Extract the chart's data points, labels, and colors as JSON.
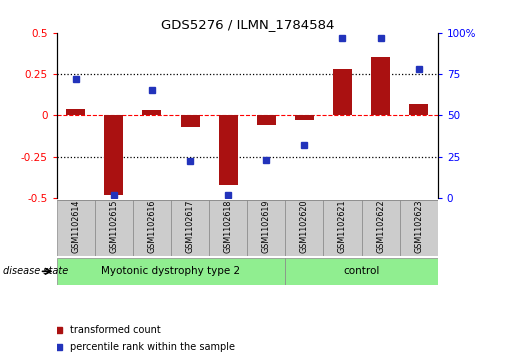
{
  "title": "GDS5276 / ILMN_1784584",
  "samples": [
    "GSM1102614",
    "GSM1102615",
    "GSM1102616",
    "GSM1102617",
    "GSM1102618",
    "GSM1102619",
    "GSM1102620",
    "GSM1102621",
    "GSM1102622",
    "GSM1102623"
  ],
  "red_values": [
    0.04,
    -0.48,
    0.03,
    -0.07,
    -0.42,
    -0.06,
    -0.03,
    0.28,
    0.35,
    0.07
  ],
  "blue_values": [
    72,
    2,
    65,
    22,
    2,
    23,
    32,
    97,
    97,
    78
  ],
  "ylim_left": [
    -0.5,
    0.5
  ],
  "ylim_right": [
    0,
    100
  ],
  "yticks_left": [
    -0.5,
    -0.25,
    0.0,
    0.25,
    0.5
  ],
  "yticks_right": [
    0,
    25,
    50,
    75,
    100
  ],
  "ytick_labels_left": [
    "-0.5",
    "-0.25",
    "0",
    "0.25",
    "0.5"
  ],
  "ytick_labels_right": [
    "0",
    "25",
    "50",
    "75",
    "100%"
  ],
  "group1_label": "Myotonic dystrophy type 2",
  "group2_label": "control",
  "group1_indices": [
    0,
    1,
    2,
    3,
    4,
    5
  ],
  "group2_indices": [
    6,
    7,
    8,
    9
  ],
  "disease_state_label": "disease state",
  "legend_red": "transformed count",
  "legend_blue": "percentile rank within the sample",
  "bar_color": "#aa1111",
  "dot_color": "#2233bb",
  "group_bg_color": "#90ee90",
  "tick_label_bg": "#cccccc",
  "bar_width": 0.5
}
